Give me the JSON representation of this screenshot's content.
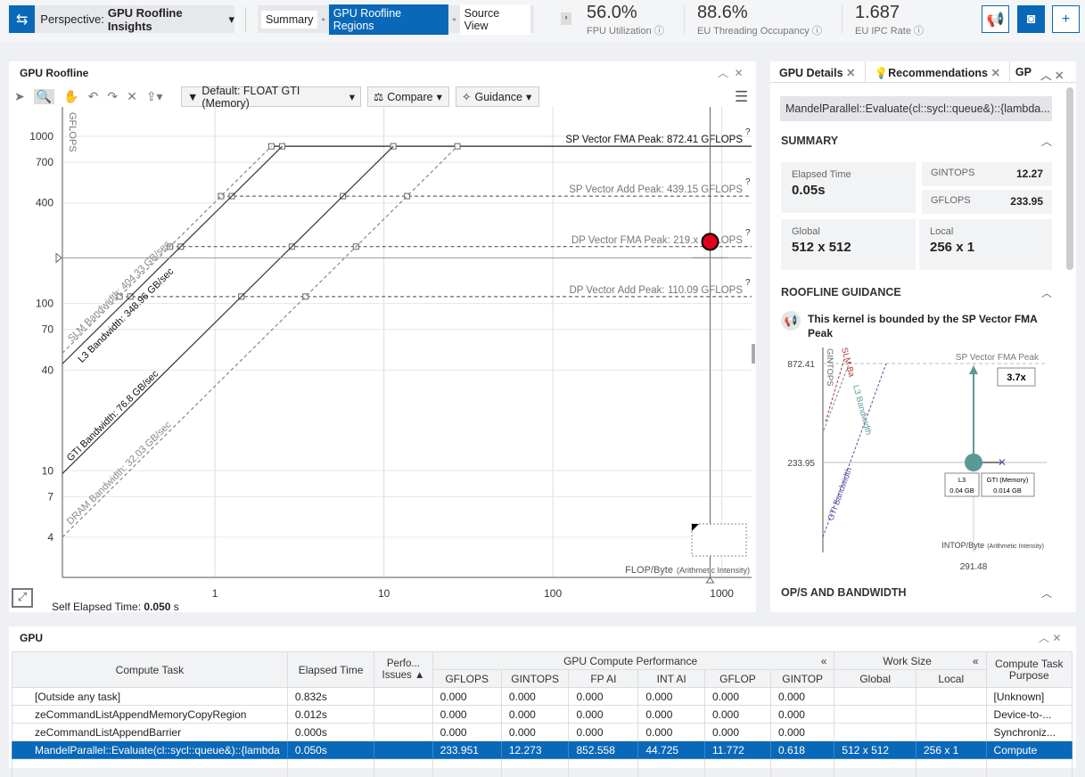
{
  "header": {
    "perspective_label": "Perspective:",
    "perspective_value": "GPU Roofline Insights",
    "crumbs": [
      "Summary",
      "GPU Roofline Regions",
      "Source View"
    ],
    "metrics": [
      {
        "value": "56.0%",
        "label": "FPU Utilization"
      },
      {
        "value": "88.6%",
        "label": "EU Threading Occupancy"
      },
      {
        "value": "1.687",
        "label": "EU IPC Rate"
      }
    ]
  },
  "roofline": {
    "title": "GPU Roofline",
    "filter": "Default: FLOAT GTI (Memory)",
    "compare": "Compare",
    "guidance": "Guidance",
    "self_elapsed_label": "Self Elapsed Time:",
    "self_elapsed_value": "0.050",
    "self_elapsed_unit": "s"
  },
  "chart_data": {
    "type": "scatter",
    "xscale": "log",
    "yscale": "log",
    "ylabel": "GFLOPS",
    "xlabel": "FLOP/Byte",
    "xlabel_suffix": "(Arithmetic Intensity)",
    "xlim": [
      0.125,
      1500
    ],
    "ylim": [
      2.3,
      1500
    ],
    "xticks": [
      1,
      10,
      100,
      1000
    ],
    "yticks": [
      4,
      7,
      10,
      40,
      70,
      100,
      400,
      700,
      1000
    ],
    "compute_roofs": [
      {
        "name": "SP Vector FMA Peak: 872.41 GFLOPS",
        "value": 872.41,
        "style": "solid"
      },
      {
        "name": "SP Vector Add Peak: 439.15 GFLOPS",
        "value": 439.15,
        "style": "dashed"
      },
      {
        "name": "DP Vector FMA Peak: 219.x GFLOPS",
        "value": 219,
        "style": "dashed"
      },
      {
        "name": "DP Vector Add Peak: 110.09 GFLOPS",
        "value": 110.09,
        "style": "dashed"
      }
    ],
    "bandwidth_roofs": [
      {
        "name": "SLM Bandwidth: 404.33 GB/sec",
        "value": 404.33,
        "style": "dashed"
      },
      {
        "name": "L3 Bandwidth: 348.96 GB/sec",
        "value": 348.96,
        "style": "solid"
      },
      {
        "name": "GTI Bandwidth: 76.8 GB/sec",
        "value": 76.8,
        "style": "solid"
      },
      {
        "name": "DRAM Bandwidth: 32.03 GB/sec",
        "value": 32.03,
        "style": "dashed"
      }
    ],
    "points": [
      {
        "x": 852.558,
        "y": 233.951,
        "color": "#e0001b"
      }
    ]
  },
  "details": {
    "tabs": [
      "GPU Details",
      "Recommendations",
      "GP"
    ],
    "kernel": "MandelParallel::Evaluate(cl::sycl::queue&)::{lambda...",
    "summary_title": "SUMMARY",
    "elapsed_label": "Elapsed Time",
    "elapsed_value": "0.05s",
    "gintops_label": "GINTOPS",
    "gintops_value": "12.27",
    "gflops_label": "GFLOPS",
    "gflops_value": "233.95",
    "global_label": "Global",
    "global_value": "512 x 512",
    "local_label": "Local",
    "local_value": "256 x 1",
    "guidance_title": "ROOFLINE GUIDANCE",
    "guidance_text": "This kernel is bounded by the SP Vector FMA Peak",
    "mini": {
      "peak": "872.41",
      "perf": "233.95",
      "ai": "291.48",
      "peak_label": "SP Vector FMA Peak",
      "gain": "3.7x",
      "l3_label": "L3",
      "l3_value": "0.04 GB",
      "gti_label": "GTI (Memory)",
      "gti_value": "0.014 GB",
      "xlabel": "INTOP/Byte",
      "xlabel_suffix": "(Arithmetic Intensity)",
      "bw": [
        "SLM Ba",
        "GINTOPS",
        "L3 Bandwidth",
        "GTI Bandwidth"
      ]
    },
    "ops_title": "OP/S AND BANDWIDTH"
  },
  "gpu_table": {
    "title": "GPU",
    "group_perf": "GPU Compute Performance",
    "group_ws": "Work Size",
    "columns": [
      "Compute Task",
      "Elapsed Time",
      "Perfo... Issues",
      "GFLOPS",
      "GINTOPS",
      "FP AI",
      "INT AI",
      "GFLOP",
      "GINTOP",
      "Global",
      "Local",
      "Compute Task Purpose"
    ],
    "rows": [
      [
        "[Outside any task]",
        "0.832s",
        "",
        "0.000",
        "0.000",
        "0.000",
        "0.000",
        "0.000",
        "0.000",
        "",
        "",
        "[Unknown]"
      ],
      [
        "zeCommandListAppendMemoryCopyRegion",
        "0.012s",
        "",
        "0.000",
        "0.000",
        "0.000",
        "0.000",
        "0.000",
        "0.000",
        "",
        "",
        "Device-to-..."
      ],
      [
        "zeCommandListAppendBarrier",
        "0.000s",
        "",
        "0.000",
        "0.000",
        "0.000",
        "0.000",
        "0.000",
        "0.000",
        "",
        "",
        "Synchroniz..."
      ],
      [
        "MandelParallel::Evaluate(cl::sycl::queue&)::{lambda",
        "0.050s",
        "",
        "233.951",
        "12.273",
        "852.558",
        "44.725",
        "11.772",
        "0.618",
        "512 x 512",
        "256 x 1",
        "Compute"
      ]
    ],
    "selected_row": 3
  }
}
